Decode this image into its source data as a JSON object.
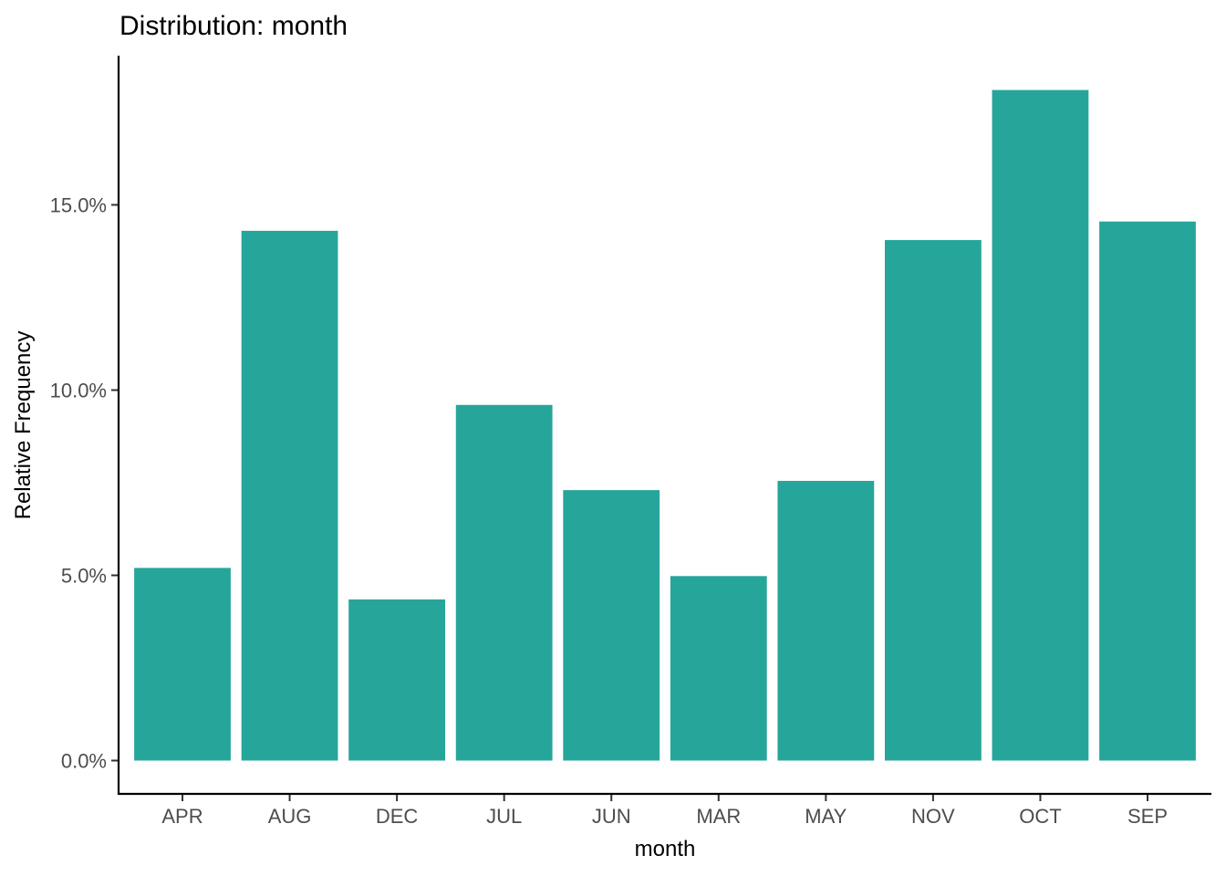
{
  "colors": {
    "bar": "#26a69a",
    "axis": "#000000",
    "tick_text": "#4d4d4d"
  },
  "chart_data": {
    "type": "bar",
    "title": "Distribution: month",
    "xlabel": "month",
    "ylabel": "Relative Frequency",
    "categories": [
      "APR",
      "AUG",
      "DEC",
      "JUL",
      "JUN",
      "MAR",
      "MAY",
      "NOV",
      "OCT",
      "SEP"
    ],
    "values": [
      5.2,
      14.3,
      4.35,
      9.6,
      7.3,
      4.98,
      7.55,
      14.05,
      18.1,
      14.55
    ],
    "ylim": [
      -0.9,
      19.0
    ],
    "yticks": [
      0,
      5,
      10,
      15
    ],
    "ytick_labels": [
      "0.0%",
      "5.0%",
      "10.0%",
      "15.0%"
    ],
    "grid": false,
    "legend": "none"
  }
}
